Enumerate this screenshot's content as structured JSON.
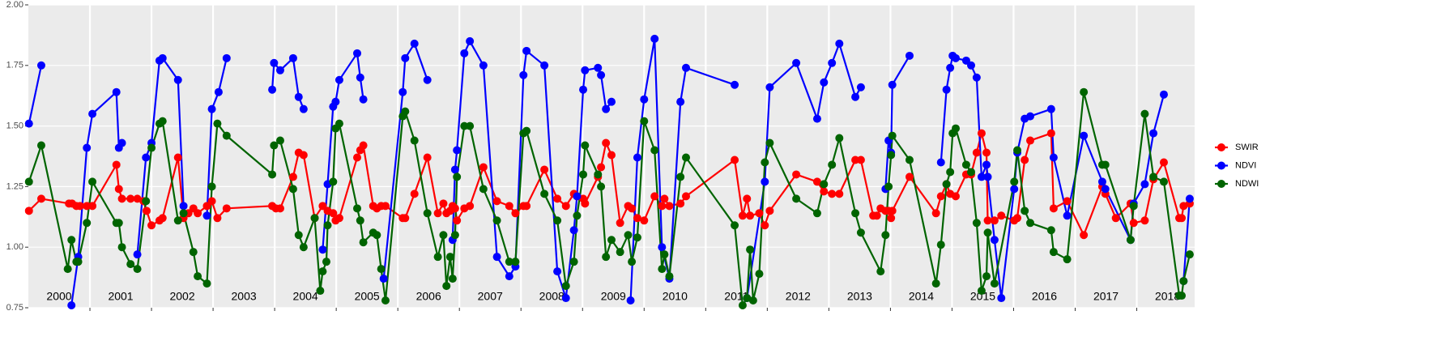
{
  "chart_data": {
    "type": "line",
    "xlim": [
      2000,
      2018.94
    ],
    "ylim": [
      0.75,
      2.0
    ],
    "yticks": [
      0.75,
      {
        "value": 1,
        "label": "1.00"
      },
      1.25,
      {
        "value": 1.5,
        "label": "1.50"
      },
      1.75,
      {
        "value": 2,
        "label": "2.00"
      }
    ],
    "xticks": [
      2001,
      2002,
      2003,
      2004,
      2005,
      2006,
      2007,
      2008,
      2009,
      2010,
      2011,
      2012,
      2013,
      2014,
      2015,
      2016,
      2017,
      2018
    ],
    "year_labels": [
      {
        "value": 2000.5,
        "label": "2000"
      },
      {
        "value": 2001.5,
        "label": "2001"
      },
      {
        "value": 2002.5,
        "label": "2002"
      },
      {
        "value": 2003.5,
        "label": "2003"
      },
      {
        "value": 2004.5,
        "label": "2004"
      },
      {
        "value": 2005.5,
        "label": "2005"
      },
      {
        "value": 2006.5,
        "label": "2006"
      },
      {
        "value": 2007.5,
        "label": "2007"
      },
      {
        "value": 2008.5,
        "label": "2008"
      },
      {
        "value": 2009.5,
        "label": "2009"
      },
      {
        "value": 2010.5,
        "label": "2010"
      },
      {
        "value": 2011.5,
        "label": "2011"
      },
      {
        "value": 2012.5,
        "label": "2012"
      },
      {
        "value": 2013.5,
        "label": "2013"
      },
      {
        "value": 2014.5,
        "label": "2014"
      },
      {
        "value": 2015.5,
        "label": "2015"
      },
      {
        "value": 2016.5,
        "label": "2016"
      },
      {
        "value": 2017.5,
        "label": "2017"
      },
      {
        "value": 2018.5,
        "label": "2018"
      }
    ],
    "grid": true,
    "legend": "right",
    "series": [
      {
        "name": "SWIR",
        "color": "#ff0000",
        "x": [
          2000.01,
          2000.21,
          2000.66,
          2000.71,
          2000.78,
          2000.84,
          2000.95,
          2001.04,
          2001.43,
          2001.47,
          2001.52,
          2001.66,
          2001.77,
          2001.87,
          2001.92,
          2002.0,
          2002.13,
          2002.18,
          2002.43,
          2002.52,
          2002.6,
          2002.68,
          2002.75,
          2002.9,
          2002.98,
          2003.07,
          2003.22,
          2003.96,
          2004.02,
          2004.09,
          2004.3,
          2004.39,
          2004.47,
          2004.65,
          2004.78,
          2004.86,
          2004.95,
          2004.99,
          2005.05,
          2005.34,
          2005.39,
          2005.44,
          2005.6,
          2005.66,
          2005.73,
          2005.8,
          2006.08,
          2006.12,
          2006.27,
          2006.48,
          2006.65,
          2006.74,
          2006.79,
          2006.85,
          2006.89,
          2006.93,
          2006.96,
          2007.08,
          2007.17,
          2007.39,
          2007.61,
          2007.81,
          2007.91,
          2008.04,
          2008.09,
          2008.38,
          2008.59,
          2008.73,
          2008.86,
          2008.91,
          2009.01,
          2009.04,
          2009.25,
          2009.3,
          2009.38,
          2009.47,
          2009.61,
          2009.74,
          2009.8,
          2009.89,
          2010.0,
          2010.17,
          2010.29,
          2010.33,
          2010.41,
          2010.59,
          2010.68,
          2011.47,
          2011.6,
          2011.67,
          2011.72,
          2011.87,
          2011.96,
          2012.04,
          2012.47,
          2012.81,
          2012.92,
          2013.05,
          2013.17,
          2013.43,
          2013.52,
          2013.72,
          2013.78,
          2013.84,
          2013.92,
          2013.97,
          2014.01,
          2014.03,
          2014.31,
          2014.74,
          2014.82,
          2014.91,
          2014.97,
          2015.06,
          2015.23,
          2015.31,
          2015.4,
          2015.48,
          2015.56,
          2015.58,
          2015.69,
          2015.8,
          2016.01,
          2016.06,
          2016.18,
          2016.27,
          2016.61,
          2016.65,
          2016.87,
          2017.14,
          2017.44,
          2017.49,
          2017.66,
          2017.9,
          2017.95,
          2018.13,
          2018.27,
          2018.44,
          2018.69,
          2018.73,
          2018.76,
          2018.86
        ],
        "values": [
          1.15,
          1.2,
          1.18,
          1.18,
          1.17,
          1.17,
          1.17,
          1.17,
          1.34,
          1.24,
          1.2,
          1.2,
          1.2,
          1.19,
          1.15,
          1.09,
          1.11,
          1.12,
          1.37,
          1.12,
          1.14,
          1.16,
          1.14,
          1.17,
          1.19,
          1.12,
          1.16,
          1.17,
          1.16,
          1.16,
          1.29,
          1.39,
          1.38,
          1.12,
          1.17,
          1.15,
          1.14,
          1.11,
          1.12,
          1.37,
          1.4,
          1.42,
          1.17,
          1.16,
          1.17,
          1.17,
          1.12,
          1.12,
          1.22,
          1.37,
          1.14,
          1.18,
          1.14,
          1.15,
          1.17,
          1.16,
          1.11,
          1.16,
          1.17,
          1.33,
          1.19,
          1.17,
          1.14,
          1.17,
          1.17,
          1.32,
          1.2,
          1.17,
          1.22,
          1.21,
          1.2,
          1.18,
          1.29,
          1.33,
          1.43,
          1.38,
          1.1,
          1.17,
          1.16,
          1.12,
          1.11,
          1.21,
          1.17,
          1.2,
          1.17,
          1.18,
          1.21,
          1.36,
          1.13,
          1.2,
          1.13,
          1.14,
          1.09,
          1.15,
          1.3,
          1.27,
          1.23,
          1.22,
          1.22,
          1.36,
          1.36,
          1.13,
          1.13,
          1.16,
          1.15,
          1.15,
          1.12,
          1.15,
          1.29,
          1.14,
          1.21,
          1.26,
          1.22,
          1.21,
          1.3,
          1.3,
          1.39,
          1.47,
          1.39,
          1.11,
          1.11,
          1.13,
          1.11,
          1.12,
          1.36,
          1.44,
          1.47,
          1.16,
          1.19,
          1.05,
          1.25,
          1.22,
          1.12,
          1.18,
          1.1,
          1.11,
          1.28,
          1.35,
          1.12,
          1.12,
          1.17,
          1.18
        ]
      },
      {
        "name": "NDVI",
        "color": "#0000ff",
        "x": [
          2000.01,
          2000.21,
          null,
          2000.7,
          2000.81,
          2000.95,
          2001.04,
          2001.43,
          2001.47,
          2001.52,
          null,
          2001.77,
          2001.91,
          2002.0,
          2002.13,
          2002.18,
          2002.43,
          2002.52,
          null,
          2002.9,
          2002.98,
          2003.09,
          2003.22,
          null,
          2003.96,
          2003.99,
          2004.09,
          2004.3,
          2004.39,
          2004.47,
          null,
          2004.78,
          2004.86,
          2004.95,
          2004.99,
          2005.05,
          2005.34,
          2005.39,
          2005.44,
          null,
          2005.77,
          2006.08,
          2006.12,
          2006.27,
          2006.48,
          null,
          2006.89,
          2006.93,
          2006.96,
          2007.08,
          2007.17,
          2007.39,
          2007.61,
          2007.81,
          2007.91,
          2008.04,
          2008.09,
          2008.38,
          2008.59,
          2008.73,
          2008.86,
          2008.91,
          2009.01,
          2009.04,
          2009.25,
          2009.3,
          2009.38,
          2009.47,
          null,
          2009.78,
          2009.89,
          2010.0,
          2010.17,
          2010.29,
          2010.41,
          2010.59,
          2010.68,
          2011.47,
          null,
          2011.67,
          2011.96,
          2012.04,
          2012.47,
          2012.81,
          2012.92,
          2013.05,
          2013.17,
          2013.43,
          2013.52,
          null,
          2013.92,
          2013.97,
          2014.01,
          2014.03,
          2014.31,
          null,
          2014.82,
          2014.91,
          2014.97,
          2015.01,
          2015.06,
          2015.23,
          2015.31,
          2015.4,
          2015.48,
          2015.56,
          2015.58,
          2015.69,
          2015.8,
          2016.01,
          2016.06,
          2016.18,
          2016.27,
          2016.61,
          2016.65,
          2016.87,
          2017.14,
          2017.44,
          2017.49,
          2017.9,
          2017.95,
          2018.13,
          2018.27,
          2018.44,
          null,
          2018.76,
          2018.86
        ],
        "values": [
          1.51,
          1.75,
          null,
          0.76,
          0.96,
          1.41,
          1.55,
          1.64,
          1.41,
          1.43,
          null,
          0.97,
          1.37,
          1.43,
          1.77,
          1.78,
          1.69,
          1.17,
          null,
          1.13,
          1.57,
          1.64,
          1.78,
          null,
          1.65,
          1.76,
          1.73,
          1.78,
          1.62,
          1.57,
          null,
          0.99,
          1.26,
          1.58,
          1.6,
          1.69,
          1.8,
          1.7,
          1.61,
          null,
          0.87,
          1.64,
          1.78,
          1.84,
          1.69,
          null,
          1.03,
          1.32,
          1.4,
          1.8,
          1.85,
          1.75,
          0.96,
          0.88,
          0.92,
          1.71,
          1.81,
          1.75,
          0.9,
          0.79,
          1.07,
          1.21,
          1.65,
          1.73,
          1.74,
          1.71,
          1.57,
          1.6,
          null,
          0.78,
          1.37,
          1.61,
          1.86,
          1.0,
          0.87,
          1.6,
          1.74,
          1.67,
          null,
          0.79,
          1.27,
          1.66,
          1.76,
          1.53,
          1.68,
          1.76,
          1.84,
          1.62,
          1.66,
          null,
          1.24,
          1.44,
          1.39,
          1.67,
          1.79,
          null,
          1.35,
          1.65,
          1.74,
          1.79,
          1.78,
          1.77,
          1.75,
          1.7,
          1.29,
          1.34,
          1.29,
          1.03,
          0.79,
          1.24,
          1.39,
          1.53,
          1.54,
          1.57,
          1.37,
          1.13,
          1.46,
          1.27,
          1.24,
          1.03,
          1.18,
          1.26,
          1.47,
          1.63,
          null,
          0.86,
          1.2
        ]
      },
      {
        "name": "NDWI",
        "color": "#006400",
        "x": [
          2000.01,
          2000.21,
          2000.64,
          2000.7,
          2000.78,
          2000.81,
          2000.95,
          2001.04,
          2001.43,
          2001.47,
          2001.52,
          2001.66,
          2001.77,
          2001.91,
          2002.0,
          2002.13,
          2002.18,
          2002.43,
          2002.52,
          2002.68,
          2002.75,
          2002.9,
          2002.98,
          2003.07,
          2003.22,
          2003.96,
          2003.99,
          2004.09,
          2004.3,
          2004.39,
          2004.47,
          2004.65,
          2004.74,
          2004.78,
          2004.84,
          2004.86,
          2004.95,
          2004.99,
          2005.05,
          2005.34,
          2005.39,
          2005.44,
          2005.6,
          2005.66,
          2005.73,
          2005.8,
          2006.08,
          2006.12,
          2006.27,
          2006.48,
          2006.65,
          2006.74,
          2006.79,
          2006.85,
          2006.89,
          2006.93,
          2006.96,
          2007.08,
          2007.17,
          2007.39,
          2007.61,
          2007.81,
          2007.91,
          2008.04,
          2008.09,
          2008.38,
          2008.59,
          2008.73,
          2008.86,
          2008.91,
          2009.01,
          2009.04,
          2009.25,
          2009.3,
          2009.38,
          2009.47,
          2009.61,
          2009.74,
          2009.8,
          2009.89,
          2010.0,
          2010.17,
          2010.29,
          2010.33,
          2010.41,
          2010.59,
          2010.68,
          2011.47,
          2011.6,
          2011.67,
          2011.72,
          2011.77,
          2011.87,
          2011.96,
          2012.04,
          2012.47,
          2012.81,
          2012.92,
          2013.05,
          2013.17,
          2013.43,
          2013.52,
          2013.84,
          2013.92,
          2013.97,
          2014.01,
          2014.03,
          2014.31,
          2014.74,
          2014.82,
          2014.91,
          2014.97,
          2015.01,
          2015.06,
          2015.23,
          2015.31,
          2015.4,
          2015.48,
          2015.56,
          2015.58,
          2015.69,
          2016.01,
          2016.06,
          2016.18,
          2016.27,
          2016.61,
          2016.65,
          2016.87,
          2017.14,
          2017.44,
          2017.49,
          2017.9,
          2017.95,
          2018.13,
          2018.27,
          2018.44,
          2018.69,
          2018.73,
          2018.76,
          2018.86
        ],
        "values": [
          1.27,
          1.42,
          0.91,
          1.03,
          0.94,
          0.94,
          1.1,
          1.27,
          1.1,
          1.1,
          1.0,
          0.93,
          0.91,
          1.19,
          1.41,
          1.51,
          1.52,
          1.11,
          1.14,
          0.98,
          0.88,
          0.85,
          1.25,
          1.51,
          1.46,
          1.3,
          1.42,
          1.44,
          1.24,
          1.05,
          1.0,
          1.12,
          0.82,
          0.9,
          0.94,
          1.09,
          1.27,
          1.49,
          1.51,
          1.16,
          1.11,
          1.02,
          1.06,
          1.05,
          0.91,
          0.78,
          1.54,
          1.56,
          1.44,
          1.14,
          0.96,
          1.05,
          0.84,
          0.96,
          0.87,
          1.05,
          1.29,
          1.5,
          1.5,
          1.24,
          1.11,
          0.94,
          0.94,
          1.47,
          1.48,
          1.22,
          1.11,
          0.84,
          0.94,
          1.13,
          1.3,
          1.42,
          1.3,
          1.25,
          0.96,
          1.03,
          0.98,
          1.05,
          0.94,
          1.04,
          1.52,
          1.4,
          0.91,
          0.97,
          0.88,
          1.29,
          1.37,
          1.09,
          0.76,
          0.79,
          0.99,
          0.78,
          0.89,
          1.35,
          1.43,
          1.2,
          1.14,
          1.26,
          1.34,
          1.45,
          1.14,
          1.06,
          0.9,
          1.05,
          1.25,
          1.38,
          1.46,
          1.36,
          0.85,
          1.01,
          1.26,
          1.31,
          1.47,
          1.49,
          1.34,
          1.31,
          1.1,
          0.82,
          0.88,
          1.06,
          0.85,
          1.27,
          1.4,
          1.15,
          1.1,
          1.07,
          0.98,
          0.95,
          1.64,
          1.34,
          1.34,
          1.03,
          1.17,
          1.55,
          1.29,
          1.27,
          0.8,
          0.8,
          0.86,
          0.97
        ]
      }
    ]
  }
}
